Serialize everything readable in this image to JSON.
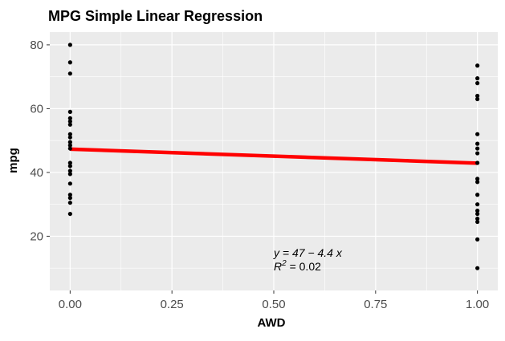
{
  "chart_data": {
    "type": "scatter",
    "title": "MPG Simple Linear Regression",
    "xlabel": "AWD",
    "ylabel": "mpg",
    "xlim": [
      -0.05,
      1.05
    ],
    "ylim": [
      3,
      84
    ],
    "x_ticks": [
      0.0,
      0.25,
      0.5,
      0.75,
      1.0
    ],
    "x_tick_labels": [
      "0.00",
      "0.25",
      "0.50",
      "0.75",
      "1.00"
    ],
    "y_ticks": [
      20,
      40,
      60,
      80
    ],
    "y_tick_labels": [
      "20",
      "40",
      "60",
      "80"
    ],
    "grid": true,
    "background": "#ebebeb",
    "point_color": "#000000",
    "line_color": "#ff0000",
    "points": [
      {
        "x": 0,
        "y": 80
      },
      {
        "x": 0,
        "y": 74.5
      },
      {
        "x": 0,
        "y": 71
      },
      {
        "x": 0,
        "y": 59
      },
      {
        "x": 0,
        "y": 57
      },
      {
        "x": 0,
        "y": 56
      },
      {
        "x": 0,
        "y": 55
      },
      {
        "x": 0,
        "y": 52
      },
      {
        "x": 0,
        "y": 51
      },
      {
        "x": 0,
        "y": 49.5
      },
      {
        "x": 0,
        "y": 48.5
      },
      {
        "x": 0,
        "y": 47.5
      },
      {
        "x": 0,
        "y": 43
      },
      {
        "x": 0,
        "y": 42
      },
      {
        "x": 0,
        "y": 40.5
      },
      {
        "x": 0,
        "y": 39.5
      },
      {
        "x": 0,
        "y": 36.5
      },
      {
        "x": 0,
        "y": 33
      },
      {
        "x": 0,
        "y": 32
      },
      {
        "x": 0,
        "y": 30.5
      },
      {
        "x": 0,
        "y": 27
      },
      {
        "x": 1,
        "y": 73.5
      },
      {
        "x": 1,
        "y": 69.5
      },
      {
        "x": 1,
        "y": 68
      },
      {
        "x": 1,
        "y": 64
      },
      {
        "x": 1,
        "y": 63
      },
      {
        "x": 1,
        "y": 52
      },
      {
        "x": 1,
        "y": 49
      },
      {
        "x": 1,
        "y": 47.5
      },
      {
        "x": 1,
        "y": 46
      },
      {
        "x": 1,
        "y": 43
      },
      {
        "x": 1,
        "y": 38
      },
      {
        "x": 1,
        "y": 37
      },
      {
        "x": 1,
        "y": 33
      },
      {
        "x": 1,
        "y": 30
      },
      {
        "x": 1,
        "y": 28
      },
      {
        "x": 1,
        "y": 27
      },
      {
        "x": 1,
        "y": 25.5
      },
      {
        "x": 1,
        "y": 24.5
      },
      {
        "x": 1,
        "y": 19
      },
      {
        "x": 1,
        "y": 10
      }
    ],
    "regression": {
      "intercept": 47.3,
      "slope": -4.4
    },
    "annotation": {
      "equation": "y = 47 − 4.4 x",
      "r2_label": "R",
      "r2_sup": "2",
      "r2_value": " = 0.02",
      "x": 0.5,
      "y": 9.5
    }
  }
}
